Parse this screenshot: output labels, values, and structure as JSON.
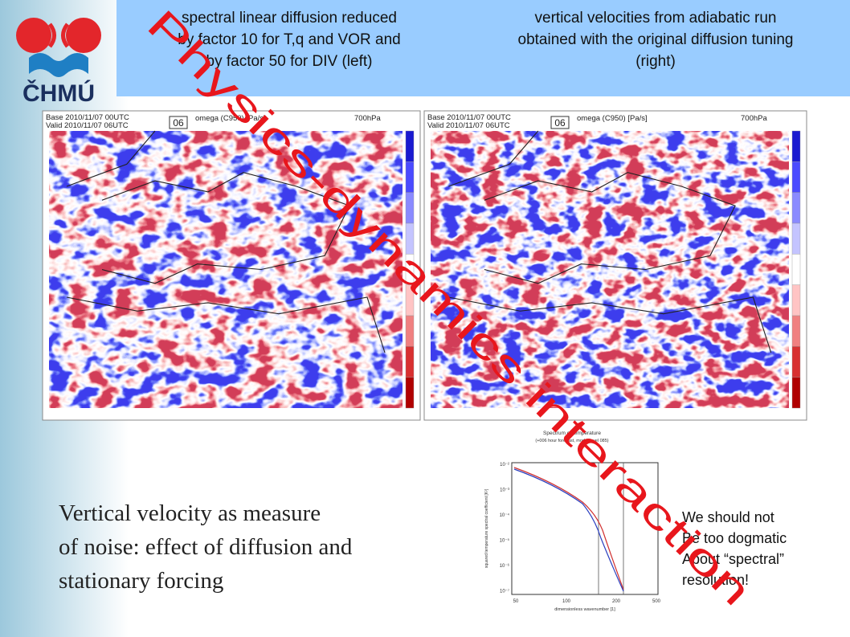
{
  "header": {
    "logo_text": "ČHMÚ",
    "left_caption": [
      "spectral linear diffusion reduced",
      "by factor 10 for T,q and VOR and",
      "by factor 50 for DIV (left)"
    ],
    "right_caption": [
      "vertical velocities from adiabatic run",
      "obtained with the original diffusion tuning",
      "(right)"
    ]
  },
  "watermark": "Physics-dynamics interaction",
  "maps": [
    {
      "base": "Base 2010/11/07 00UTC",
      "valid": "Valid 2010/11/07 06UTC",
      "field": "omega (C950) [Pa/s]",
      "level": "700hPa",
      "step": "06"
    },
    {
      "base": "Base 2010/11/07 00UTC",
      "valid": "Valid 2010/11/07 06UTC",
      "field": "omega (C950) [Pa/s]",
      "level": "700hPa",
      "step": "06"
    }
  ],
  "figure": {
    "title": "Spectrum of temperature",
    "subtitle": "(+006 hour forecast, model level 085)",
    "ylabel": "squared temperature spectral coefficient [K²]",
    "xlabel": "dimensionless wavenumber [1]",
    "xtick_labels": [
      "50",
      "100",
      "200",
      "500"
    ],
    "ytick_labels": [
      "10⁻²",
      "10⁻³",
      "10⁻⁴",
      "10⁻⁵",
      "10⁻⁶",
      "10⁻⁷"
    ]
  },
  "body_text": [
    "Vertical velocity as measure",
    "of noise: effect of diffusion and",
    "stationary forcing"
  ],
  "note": [
    "We should not",
    "Be too dogmatic",
    "About “spectral”",
    "resolution!"
  ]
}
